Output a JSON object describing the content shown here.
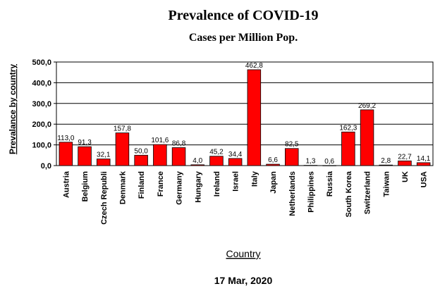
{
  "chart_data": {
    "type": "bar",
    "title": "Prevalence of COVID-19",
    "subtitle": "Cases per Million Pop.",
    "xlabel": "Country",
    "ylabel": "Prevalance by country",
    "footnote": "17 Mar, 2020",
    "ylim": [
      0,
      500
    ],
    "yticks": [
      "0,0",
      "100,0",
      "200,0",
      "300,0",
      "400,0",
      "500,0"
    ],
    "grid": true,
    "legend": "none",
    "bar_color": "#ff0000",
    "bar_edge_color": "#000000",
    "categories": [
      "Austria",
      "Belgium",
      "Czech Republi",
      "Denmark",
      "Finland",
      "France",
      "Germany",
      "Hungary",
      "Ireland",
      "Israel",
      "Italy",
      "Japan",
      "Netherlands",
      "Philippines",
      "Russia",
      "South Korea",
      "Switzerland",
      "Taiwan",
      "UK",
      "USA"
    ],
    "values": [
      113.0,
      91.3,
      32.1,
      157.8,
      50.0,
      101.6,
      86.8,
      4.0,
      45.2,
      34.4,
      462.8,
      6.6,
      82.5,
      1.3,
      0.6,
      162.3,
      269.2,
      2.8,
      22.7,
      14.1
    ],
    "value_labels": [
      "113,0",
      "91,3",
      "32,1",
      "157,8",
      "50,0",
      "101,6",
      "86,8",
      "4,0",
      "45,2",
      "34,4",
      "462,8",
      "6,6",
      "82,5",
      "1,3",
      "0,6",
      "162,3",
      "269,2",
      "2,8",
      "22,7",
      "14,1"
    ]
  }
}
